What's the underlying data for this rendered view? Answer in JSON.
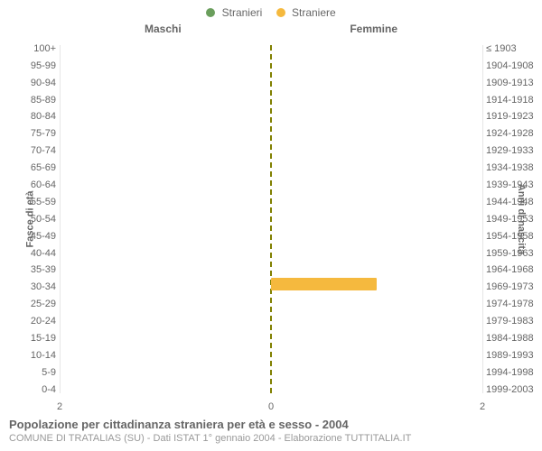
{
  "legend": {
    "items": [
      {
        "label": "Stranieri",
        "color": "#6a9e5c"
      },
      {
        "label": "Straniere",
        "color": "#f5b93e"
      }
    ]
  },
  "panels": {
    "left_title": "Maschi",
    "right_title": "Femmine"
  },
  "axes": {
    "left_label": "Fasce di età",
    "right_label": "Anni di nascita",
    "x_max": 2,
    "x_ticks_left": [
      2,
      0
    ],
    "x_ticks_right": [
      0,
      2
    ],
    "grid_color": "#e6e6e6",
    "center_color": "#808000",
    "background": "#ffffff"
  },
  "categories_age": [
    "100+",
    "95-99",
    "90-94",
    "85-89",
    "80-84",
    "75-79",
    "70-74",
    "65-69",
    "60-64",
    "55-59",
    "50-54",
    "45-49",
    "40-44",
    "35-39",
    "30-34",
    "25-29",
    "20-24",
    "15-19",
    "10-14",
    "5-9",
    "0-4"
  ],
  "categories_birth": [
    "≤ 1903",
    "1904-1908",
    "1909-1913",
    "1914-1918",
    "1919-1923",
    "1924-1928",
    "1929-1933",
    "1934-1938",
    "1939-1943",
    "1944-1948",
    "1949-1953",
    "1954-1958",
    "1959-1963",
    "1964-1968",
    "1969-1973",
    "1974-1978",
    "1979-1983",
    "1984-1988",
    "1989-1993",
    "1994-1998",
    "1999-2003"
  ],
  "series": {
    "male": {
      "color": "#6a9e5c",
      "values": [
        0,
        0,
        0,
        0,
        0,
        0,
        0,
        0,
        0,
        0,
        0,
        0,
        0,
        0,
        0,
        0,
        0,
        0,
        0,
        0,
        0
      ]
    },
    "female": {
      "color": "#f5b93e",
      "values": [
        0,
        0,
        0,
        0,
        0,
        0,
        0,
        0,
        0,
        0,
        0,
        0,
        0,
        0,
        1,
        0,
        0,
        0,
        0,
        0,
        0
      ]
    }
  },
  "footer": {
    "title": "Popolazione per cittadinanza straniera per età e sesso - 2004",
    "subtitle": "COMUNE DI TRATALIAS (SU) - Dati ISTAT 1° gennaio 2004 - Elaborazione TUTTITALIA.IT"
  },
  "style": {
    "font_label_size": 11,
    "font_title_size": 13,
    "text_color": "#666666",
    "sub_color": "#999999"
  }
}
